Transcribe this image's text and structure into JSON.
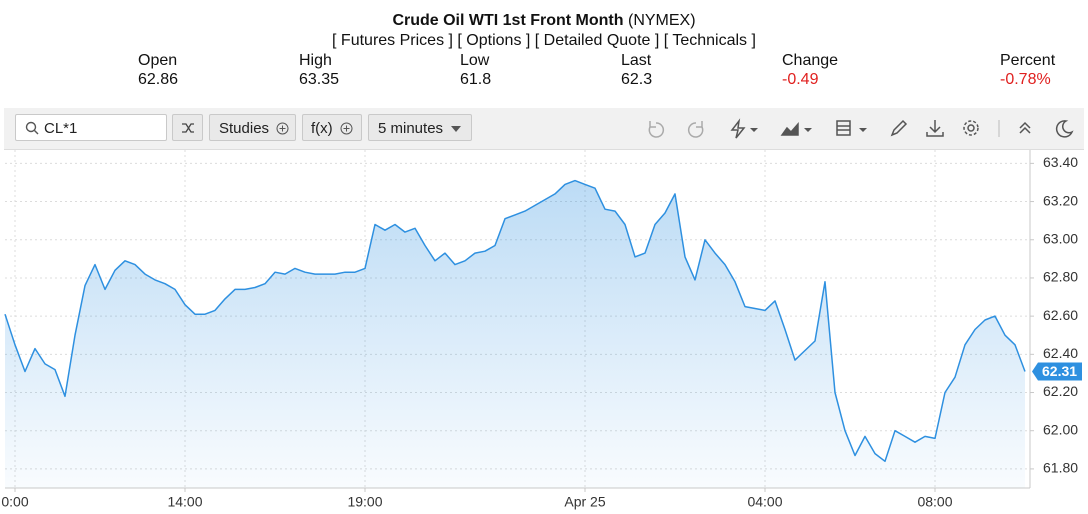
{
  "header": {
    "title": "Crude Oil WTI 1st Front Month",
    "exchange": "(NYMEX)",
    "links": [
      "[ Futures Prices ]",
      "[ Options ]",
      "[ Detailed Quote ]",
      "[ Technicals ]"
    ],
    "stats": [
      {
        "label": "Open",
        "value": 62.86
      },
      {
        "label": "High",
        "value": 63.35
      },
      {
        "label": "Low",
        "value": 61.8
      },
      {
        "label": "Last",
        "value": 62.3
      },
      {
        "label": "Change",
        "value": -0.49
      },
      {
        "label": "Percent",
        "value": "-0.78%"
      }
    ]
  },
  "toolbar": {
    "symbol": "CL*1",
    "studies": "Studies",
    "functions": "f(x)",
    "interval": "5 minutes"
  },
  "chart_data": {
    "type": "area",
    "color": "#2e90e0",
    "grid": true,
    "categories": [
      null,
      "0:00",
      null,
      null,
      null,
      null,
      null,
      null,
      null,
      null,
      null,
      null,
      null,
      null,
      null,
      null,
      null,
      null,
      "14:00",
      null,
      null,
      null,
      null,
      null,
      null,
      null,
      null,
      null,
      null,
      null,
      null,
      null,
      null,
      null,
      null,
      null,
      "19:00",
      null,
      null,
      null,
      null,
      null,
      null,
      null,
      null,
      null,
      null,
      null,
      null,
      null,
      null,
      null,
      null,
      null,
      null,
      null,
      null,
      null,
      "Apr 25",
      null,
      null,
      null,
      null,
      null,
      null,
      null,
      null,
      null,
      null,
      null,
      null,
      null,
      null,
      null,
      null,
      null,
      "04:00",
      null,
      null,
      null,
      null,
      null,
      null,
      null,
      null,
      null,
      null,
      null,
      null,
      null,
      null,
      null,
      null,
      "08:00",
      null,
      null,
      null,
      null,
      null,
      null,
      null,
      null,
      null
    ],
    "values": [
      62.61,
      62.45,
      62.31,
      62.43,
      62.35,
      62.32,
      62.18,
      62.5,
      62.76,
      62.87,
      62.74,
      62.84,
      62.89,
      62.87,
      62.82,
      62.79,
      62.77,
      62.74,
      62.66,
      62.61,
      62.61,
      62.63,
      62.69,
      62.74,
      62.74,
      62.75,
      62.77,
      62.83,
      62.82,
      62.85,
      62.83,
      62.82,
      62.82,
      62.82,
      62.83,
      62.83,
      62.85,
      63.08,
      63.05,
      63.08,
      63.04,
      63.06,
      62.97,
      62.89,
      62.93,
      62.87,
      62.89,
      62.93,
      62.94,
      62.97,
      63.11,
      63.13,
      63.15,
      63.18,
      63.21,
      63.24,
      63.29,
      63.31,
      63.29,
      63.27,
      63.16,
      63.15,
      63.08,
      62.91,
      62.93,
      63.08,
      63.14,
      63.24,
      62.91,
      62.79,
      63.0,
      62.93,
      62.87,
      62.78,
      62.65,
      62.64,
      62.63,
      62.68,
      62.53,
      62.37,
      62.42,
      62.47,
      62.78,
      62.2,
      62.0,
      61.87,
      61.97,
      61.88,
      61.84,
      62.0,
      61.97,
      61.94,
      61.97,
      61.96,
      62.2,
      62.28,
      62.45,
      62.53,
      62.58,
      62.6,
      62.5,
      62.45,
      62.31
    ],
    "ylim": [
      61.7,
      63.47
    ],
    "yticks": [
      {
        "value": 61.8,
        "label": "61.80"
      },
      {
        "value": 62.0,
        "label": "62.00"
      },
      {
        "value": 62.2,
        "label": "62.20"
      },
      {
        "value": 62.4,
        "label": "62.40"
      },
      {
        "value": 62.6,
        "label": "62.60"
      },
      {
        "value": 62.8,
        "label": "62.80"
      },
      {
        "value": 63.0,
        "label": "63.00"
      },
      {
        "value": 63.2,
        "label": "63.20"
      },
      {
        "value": 63.4,
        "label": "63.40"
      }
    ]
  }
}
